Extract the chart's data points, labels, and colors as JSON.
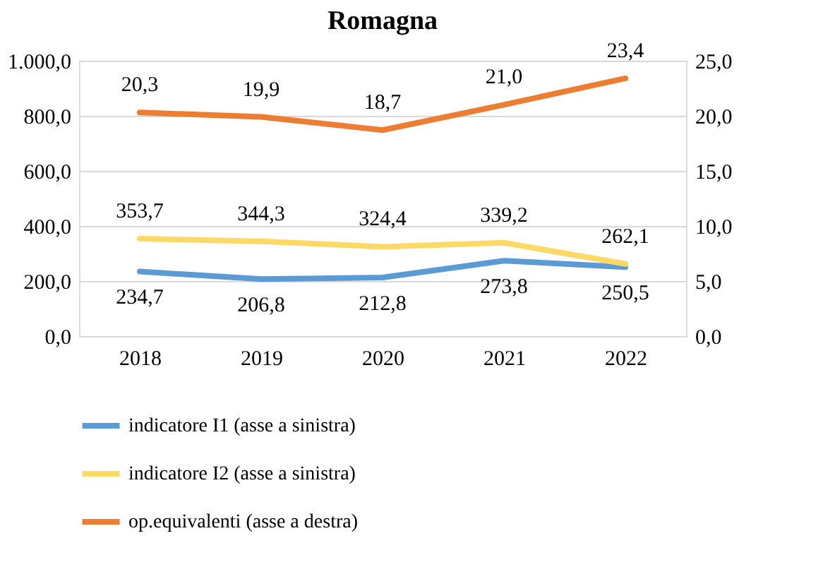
{
  "chart_data": {
    "type": "line",
    "title": "Romagna",
    "categories": [
      "2018",
      "2019",
      "2020",
      "2021",
      "2022"
    ],
    "series": [
      {
        "name": "indicatore I1 (asse a sinistra)",
        "color": "#5b9bd5",
        "values": [
          234.7,
          206.8,
          212.8,
          273.8,
          250.5
        ],
        "value_labels": [
          "234,7",
          "206,8",
          "212,8",
          "273,8",
          "250,5"
        ]
      },
      {
        "name": "indicatore I2 (asse a sinistra)",
        "color": "#ffd966",
        "values": [
          353.7,
          344.3,
          324.4,
          339.2,
          262.1
        ],
        "value_labels": [
          "353,7",
          "344,3",
          "324,4",
          "339,2",
          "262,1"
        ]
      },
      {
        "name": "op.equivalenti (asse a destra)",
        "color": "#ed7d31",
        "axis": "y2",
        "values": [
          20.3,
          19.9,
          18.7,
          21.0,
          23.4
        ],
        "value_labels": [
          "20,3",
          "19,9",
          "18,7",
          "21,0",
          "23,4"
        ]
      }
    ],
    "ylim": [
      0,
      1000
    ],
    "yticks": [
      {
        "value": 0,
        "label": "0,0"
      },
      {
        "value": 200,
        "label": "200,0"
      },
      {
        "value": 400,
        "label": "400,0"
      },
      {
        "value": 600,
        "label": "600,0"
      },
      {
        "value": 800,
        "label": "800,0"
      },
      {
        "value": 1000,
        "label": "1.000,0"
      }
    ],
    "y2lim": [
      0,
      25
    ],
    "y2ticks": [
      {
        "value": 0,
        "label": "0,0"
      },
      {
        "value": 5,
        "label": "5,0"
      },
      {
        "value": 10,
        "label": "10,0"
      },
      {
        "value": 15,
        "label": "15,0"
      },
      {
        "value": 20,
        "label": "20,0"
      },
      {
        "value": 25,
        "label": "25,0"
      }
    ],
    "grid": "y",
    "legend": "bottom",
    "marker": "none",
    "line_style": "solid"
  }
}
